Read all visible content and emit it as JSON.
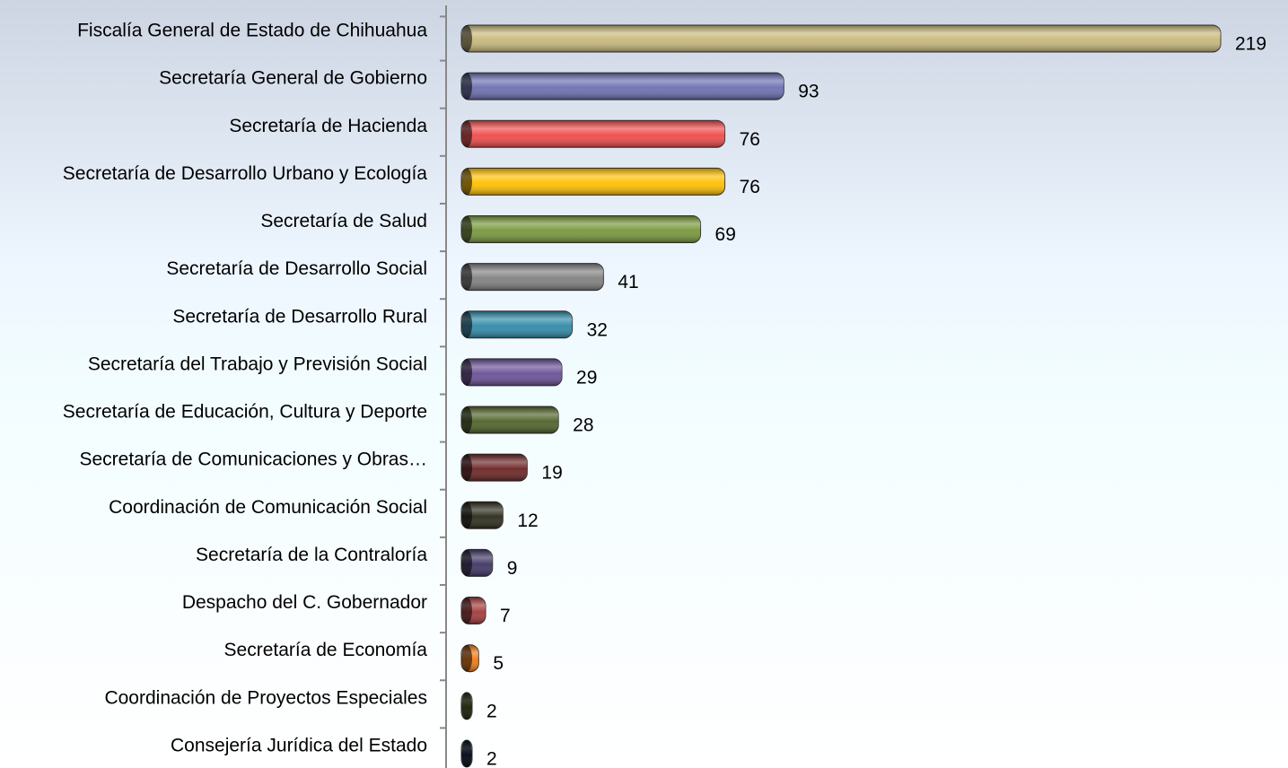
{
  "chart_data": {
    "type": "bar",
    "orientation": "horizontal",
    "categories": [
      "Fiscalía General de Estado de Chihuahua",
      "Secretaría General de Gobierno",
      "Secretaría de Hacienda",
      "Secretaría de Desarrollo Urbano y Ecología",
      "Secretaría de Salud",
      "Secretaría de Desarrollo Social",
      "Secretaría de Desarrollo Rural",
      "Secretaría del Trabajo y Previsión Social",
      "Secretaría de Educación, Cultura y Deporte",
      "Secretaría de Comunicaciones y Obras…",
      "Coordinación de Comunicación Social",
      "Secretaría de la Contraloría",
      "Despacho del C. Gobernador",
      "Secretaría de Economía",
      "Coordinación de Proyectos Especiales",
      "Consejería Jurídica del Estado"
    ],
    "values": [
      219,
      93,
      76,
      76,
      69,
      41,
      32,
      29,
      28,
      19,
      12,
      9,
      7,
      5,
      2,
      2
    ],
    "colors": [
      "#c8b87a",
      "#6a6fb0",
      "#f04a4a",
      "#ffc000",
      "#77973a",
      "#808080",
      "#2e8aa8",
      "#6a4f96",
      "#4f6228",
      "#6b2424",
      "#2a2a1a",
      "#3f3563",
      "#a33a3a",
      "#f07a10",
      "#4a5a20",
      "#0f1f3a"
    ]
  }
}
